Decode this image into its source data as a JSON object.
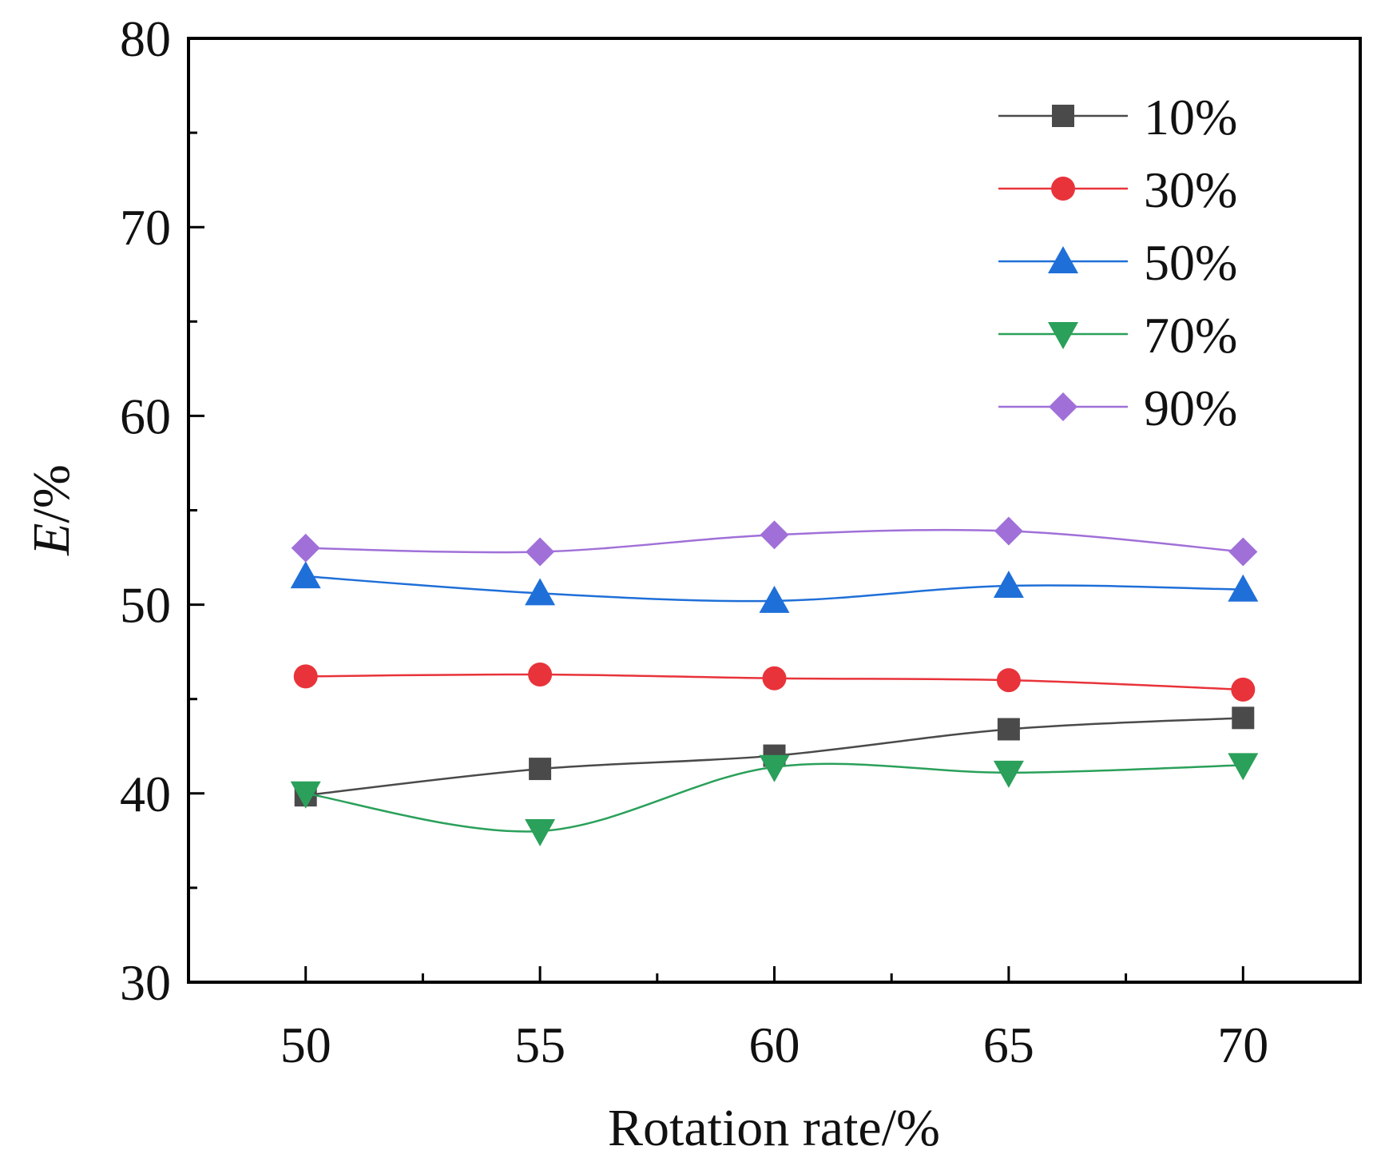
{
  "chart_data": {
    "type": "line",
    "title": "",
    "xlabel": "Rotation rate/%",
    "ylabel_italic": "E",
    "ylabel_rest": "/%",
    "x": [
      50,
      55,
      60,
      65,
      70
    ],
    "xlim": [
      47.5,
      72.5
    ],
    "ylim": [
      30,
      80
    ],
    "x_ticks": [
      50,
      55,
      60,
      65,
      70
    ],
    "x_minor_ticks": [
      52.5,
      57.5,
      62.5,
      67.5
    ],
    "y_ticks": [
      30,
      40,
      50,
      60,
      70,
      80
    ],
    "y_minor_ticks": [
      35,
      45,
      55,
      65,
      75
    ],
    "grid": false,
    "legend_position": "top-right",
    "series": [
      {
        "name": "10%",
        "marker": "square",
        "color": "#4a4a4a",
        "values": [
          39.9,
          41.3,
          42.0,
          43.4,
          44.0
        ]
      },
      {
        "name": "30%",
        "marker": "circle",
        "color": "#e8333a",
        "values": [
          46.2,
          46.3,
          46.1,
          46.0,
          45.5
        ]
      },
      {
        "name": "50%",
        "marker": "triangle-up",
        "color": "#1f6fd8",
        "values": [
          51.5,
          50.6,
          50.2,
          51.0,
          50.8
        ]
      },
      {
        "name": "70%",
        "marker": "triangle-down",
        "color": "#2aa05a",
        "values": [
          40.0,
          38.0,
          41.4,
          41.1,
          41.5
        ]
      },
      {
        "name": "90%",
        "marker": "diamond",
        "color": "#a070d8",
        "values": [
          53.0,
          52.8,
          53.7,
          53.9,
          52.8
        ]
      }
    ]
  }
}
